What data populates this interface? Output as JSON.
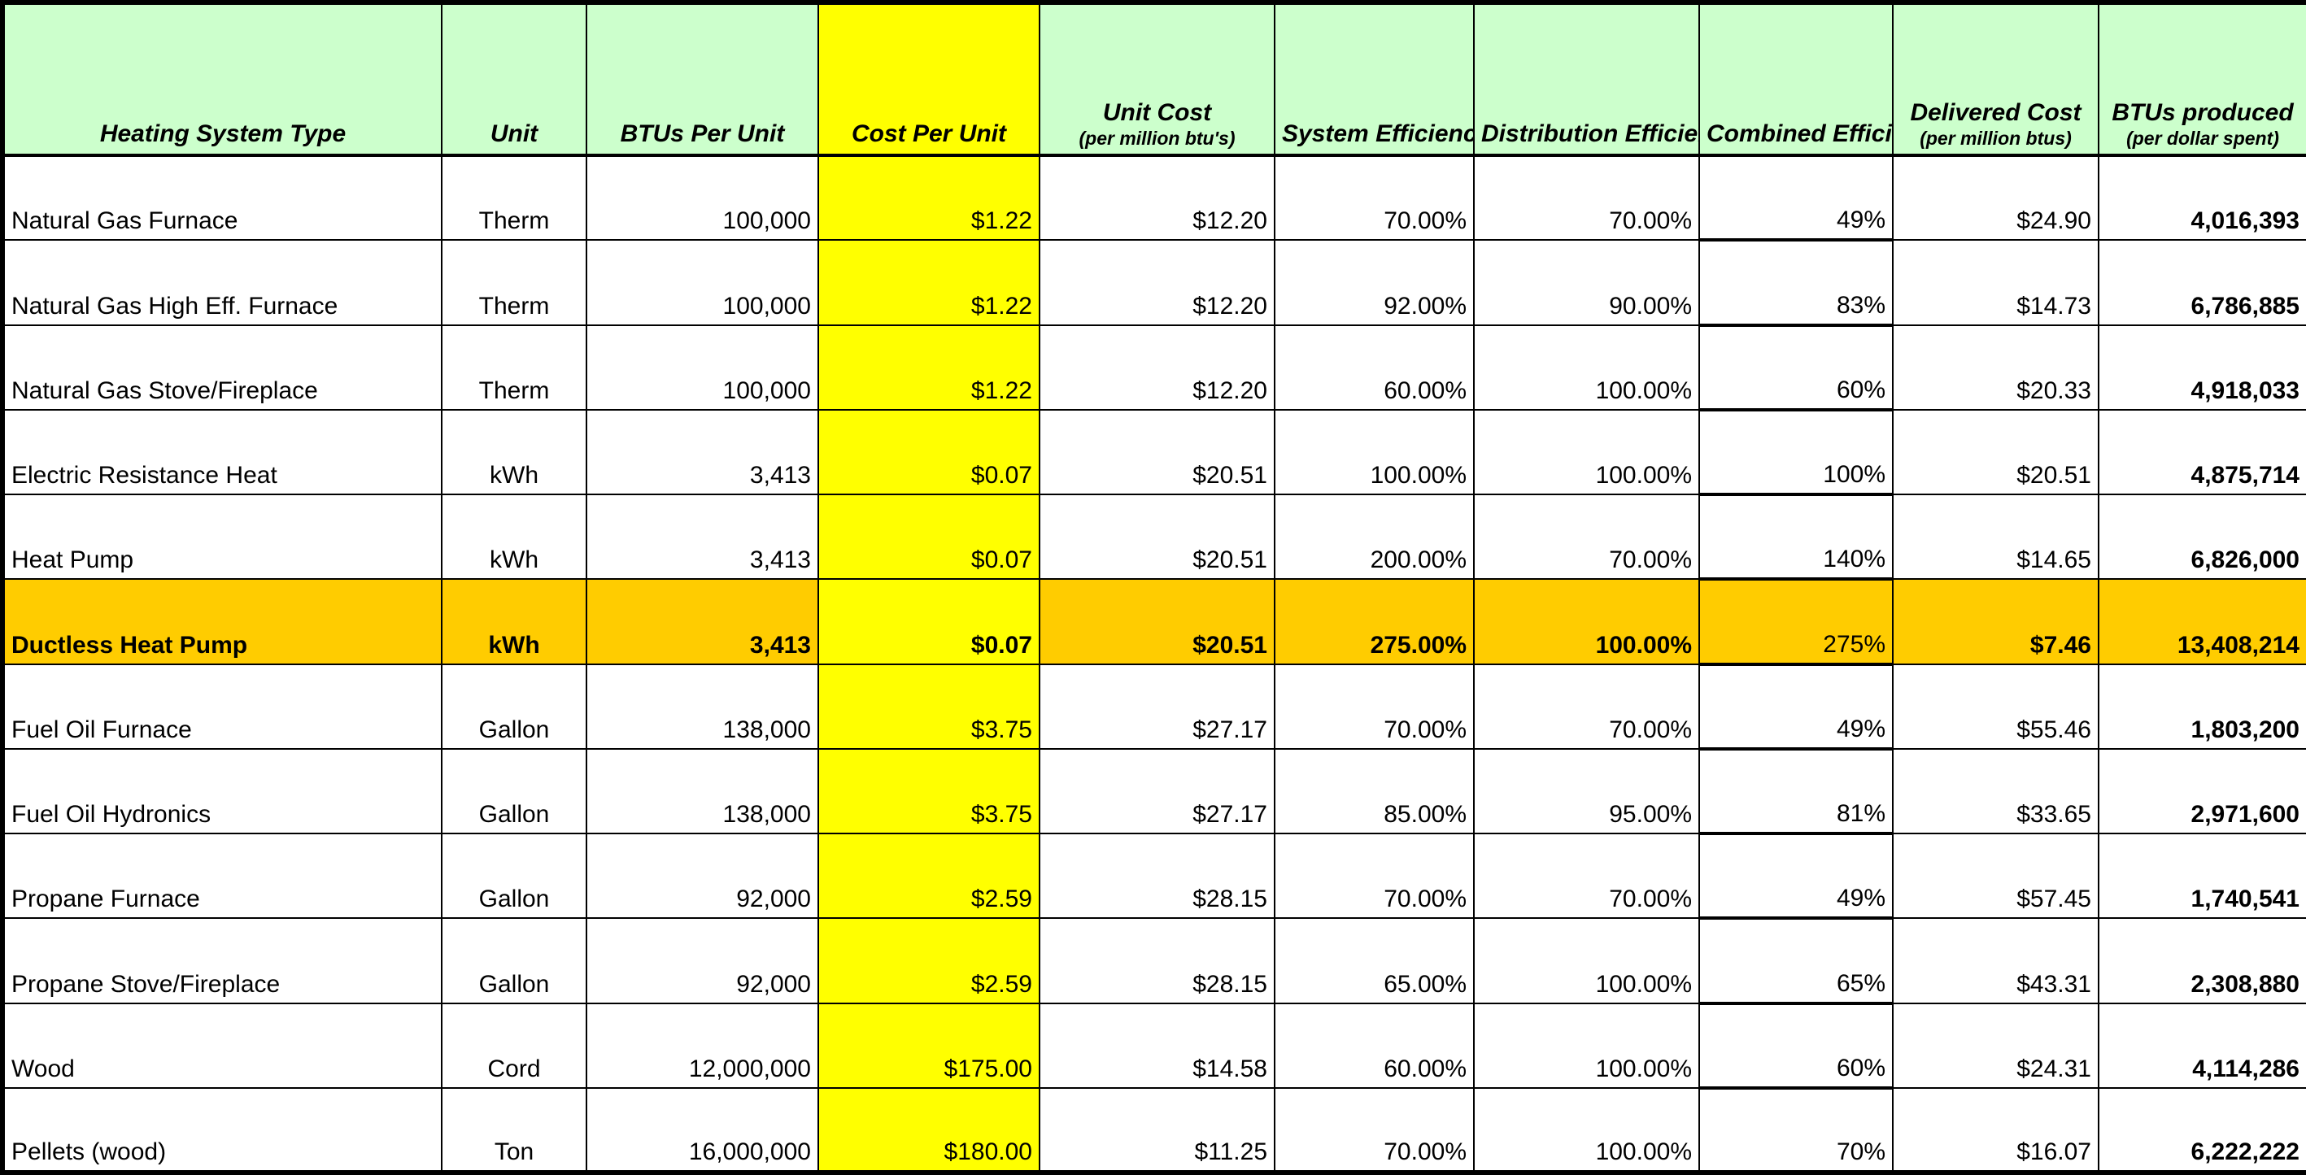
{
  "headers": [
    {
      "label": "Heating System Type",
      "sub": ""
    },
    {
      "label": "Unit",
      "sub": ""
    },
    {
      "label": "BTUs Per Unit",
      "sub": ""
    },
    {
      "label": "Cost Per Unit",
      "sub": ""
    },
    {
      "label": "Unit Cost",
      "sub": "(per million btu's)"
    },
    {
      "label": "System Efficiency",
      "sub": ""
    },
    {
      "label": "Distribution Efficiency",
      "sub": ""
    },
    {
      "label": "Combined Efficiency",
      "sub": ""
    },
    {
      "label": "Delivered Cost",
      "sub": "(per million btus)"
    },
    {
      "label": "BTUs produced",
      "sub": "(per dollar spent)"
    }
  ],
  "highlight_color": "#ffcc00",
  "header_color": "#ccffcc",
  "cost_column_color": "#ffff00",
  "rows": [
    {
      "type": "Natural Gas Furnace",
      "unit": "Therm",
      "btus_per_unit": "100,000",
      "cost_per_unit": "$1.22",
      "unit_cost": "$12.20",
      "system_eff": "70.00%",
      "dist_eff": "70.00%",
      "combined_eff": "49%",
      "delivered_cost": "$24.90",
      "btus_per_dollar": "4,016,393",
      "highlight": false
    },
    {
      "type": "Natural Gas High Eff. Furnace",
      "unit": "Therm",
      "btus_per_unit": "100,000",
      "cost_per_unit": "$1.22",
      "unit_cost": "$12.20",
      "system_eff": "92.00%",
      "dist_eff": "90.00%",
      "combined_eff": "83%",
      "delivered_cost": "$14.73",
      "btus_per_dollar": "6,786,885",
      "highlight": false
    },
    {
      "type": "Natural Gas Stove/Fireplace",
      "unit": "Therm",
      "btus_per_unit": "100,000",
      "cost_per_unit": "$1.22",
      "unit_cost": "$12.20",
      "system_eff": "60.00%",
      "dist_eff": "100.00%",
      "combined_eff": "60%",
      "delivered_cost": "$20.33",
      "btus_per_dollar": "4,918,033",
      "highlight": false
    },
    {
      "type": "Electric Resistance Heat",
      "unit": "kWh",
      "btus_per_unit": "3,413",
      "cost_per_unit": "$0.07",
      "unit_cost": "$20.51",
      "system_eff": "100.00%",
      "dist_eff": "100.00%",
      "combined_eff": "100%",
      "delivered_cost": "$20.51",
      "btus_per_dollar": "4,875,714",
      "highlight": false
    },
    {
      "type": "Heat Pump",
      "unit": "kWh",
      "btus_per_unit": "3,413",
      "cost_per_unit": "$0.07",
      "unit_cost": "$20.51",
      "system_eff": "200.00%",
      "dist_eff": "70.00%",
      "combined_eff": "140%",
      "delivered_cost": "$14.65",
      "btus_per_dollar": "6,826,000",
      "highlight": false
    },
    {
      "type": "Ductless Heat Pump",
      "unit": "kWh",
      "btus_per_unit": "3,413",
      "cost_per_unit": "$0.07",
      "unit_cost": "$20.51",
      "system_eff": "275.00%",
      "dist_eff": "100.00%",
      "combined_eff": "275%",
      "delivered_cost": "$7.46",
      "btus_per_dollar": "13,408,214",
      "highlight": true
    },
    {
      "type": "Fuel Oil Furnace",
      "unit": "Gallon",
      "btus_per_unit": "138,000",
      "cost_per_unit": "$3.75",
      "unit_cost": "$27.17",
      "system_eff": "70.00%",
      "dist_eff": "70.00%",
      "combined_eff": "49%",
      "delivered_cost": "$55.46",
      "btus_per_dollar": "1,803,200",
      "highlight": false
    },
    {
      "type": "Fuel Oil Hydronics",
      "unit": "Gallon",
      "btus_per_unit": "138,000",
      "cost_per_unit": "$3.75",
      "unit_cost": "$27.17",
      "system_eff": "85.00%",
      "dist_eff": "95.00%",
      "combined_eff": "81%",
      "delivered_cost": "$33.65",
      "btus_per_dollar": "2,971,600",
      "highlight": false
    },
    {
      "type": "Propane Furnace",
      "unit": "Gallon",
      "btus_per_unit": "92,000",
      "cost_per_unit": "$2.59",
      "unit_cost": "$28.15",
      "system_eff": "70.00%",
      "dist_eff": "70.00%",
      "combined_eff": "49%",
      "delivered_cost": "$57.45",
      "btus_per_dollar": "1,740,541",
      "highlight": false
    },
    {
      "type": "Propane Stove/Fireplace",
      "unit": "Gallon",
      "btus_per_unit": "92,000",
      "cost_per_unit": "$2.59",
      "unit_cost": "$28.15",
      "system_eff": "65.00%",
      "dist_eff": "100.00%",
      "combined_eff": "65%",
      "delivered_cost": "$43.31",
      "btus_per_dollar": "2,308,880",
      "highlight": false
    },
    {
      "type": "Wood",
      "unit": "Cord",
      "btus_per_unit": "12,000,000",
      "cost_per_unit": "$175.00",
      "unit_cost": "$14.58",
      "system_eff": "60.00%",
      "dist_eff": "100.00%",
      "combined_eff": "60%",
      "delivered_cost": "$24.31",
      "btus_per_dollar": "4,114,286",
      "highlight": false
    },
    {
      "type": "Pellets (wood)",
      "unit": "Ton",
      "btus_per_unit": "16,000,000",
      "cost_per_unit": "$180.00",
      "unit_cost": "$11.25",
      "system_eff": "70.00%",
      "dist_eff": "100.00%",
      "combined_eff": "70%",
      "delivered_cost": "$16.07",
      "btus_per_dollar": "6,222,222",
      "highlight": false
    }
  ]
}
